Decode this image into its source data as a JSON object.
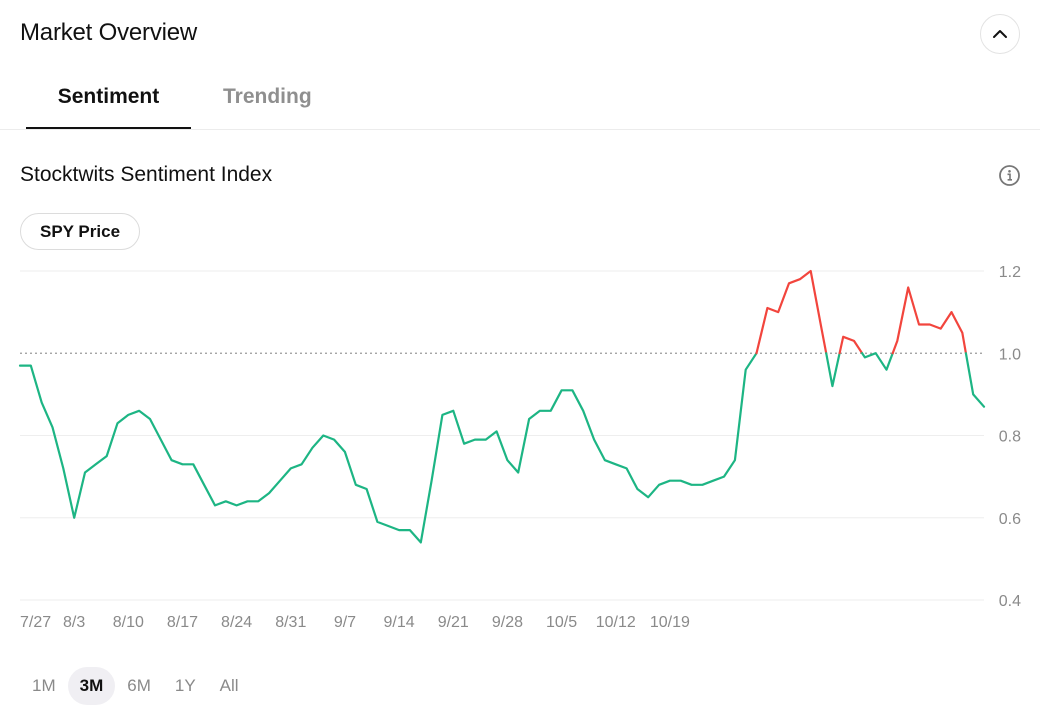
{
  "header": {
    "title": "Market Overview",
    "collapse_icon": "chevron-up-icon"
  },
  "tabs": [
    {
      "label": "Sentiment",
      "active": true
    },
    {
      "label": "Trending",
      "active": false
    }
  ],
  "section": {
    "title": "Stocktwits Sentiment Index",
    "info_icon": "info-icon"
  },
  "toggle": {
    "label": "SPY Price"
  },
  "colors": {
    "above": "#f2453d",
    "below": "#1db584",
    "baseline": "#999999",
    "axis_text": "#8a8a8a",
    "grid": "#eeeeee"
  },
  "chart_data": {
    "type": "line",
    "title": "Stocktwits Sentiment Index",
    "xlabel": "",
    "ylabel": "",
    "ylim": [
      0.4,
      1.2
    ],
    "yticks": [
      1.2,
      1.0,
      0.8,
      0.6,
      0.4
    ],
    "ytick_labels": [
      "1.2",
      "1.0",
      "0.8",
      "0.6",
      "0.4"
    ],
    "baseline": 1.0,
    "grid": true,
    "yaxis_position": "right",
    "x_tick_labels": [
      "7/27",
      "8/3",
      "8/10",
      "8/17",
      "8/24",
      "8/31",
      "9/7",
      "9/14",
      "9/21",
      "9/28",
      "10/5",
      "10/12",
      "10/19"
    ],
    "x_tick_index": [
      0,
      5,
      10,
      15,
      20,
      25,
      30,
      35,
      40,
      45,
      50,
      55,
      60
    ],
    "series": [
      {
        "values": [
          0.97,
          0.97,
          0.88,
          0.82,
          0.72,
          0.6,
          0.71,
          0.73,
          0.75,
          0.83,
          0.85,
          0.86,
          0.84,
          0.79,
          0.74,
          0.73,
          0.73,
          0.68,
          0.63,
          0.64,
          0.63,
          0.64,
          0.64,
          0.66,
          0.69,
          0.72,
          0.73,
          0.77,
          0.8,
          0.79,
          0.76,
          0.68,
          0.67,
          0.59,
          0.58,
          0.57,
          0.57,
          0.54,
          0.69,
          0.85,
          0.86,
          0.78,
          0.79,
          0.79,
          0.81,
          0.74,
          0.71,
          0.84,
          0.86,
          0.86,
          0.91,
          0.91,
          0.86,
          0.79,
          0.74,
          0.73,
          0.72,
          0.67,
          0.65,
          0.68,
          0.69,
          0.69,
          0.68,
          0.68,
          0.69,
          0.7,
          0.74,
          0.96,
          1.0,
          1.11,
          1.1,
          1.17,
          1.18,
          1.2,
          1.06,
          0.92,
          1.04,
          1.03,
          0.99,
          1.0,
          0.96,
          1.03,
          1.16,
          1.07,
          1.07,
          1.06,
          1.1,
          1.05,
          0.9,
          0.87
        ]
      }
    ]
  },
  "ranges": [
    {
      "label": "1M",
      "active": false
    },
    {
      "label": "3M",
      "active": true
    },
    {
      "label": "6M",
      "active": false
    },
    {
      "label": "1Y",
      "active": false
    },
    {
      "label": "All",
      "active": false
    }
  ]
}
